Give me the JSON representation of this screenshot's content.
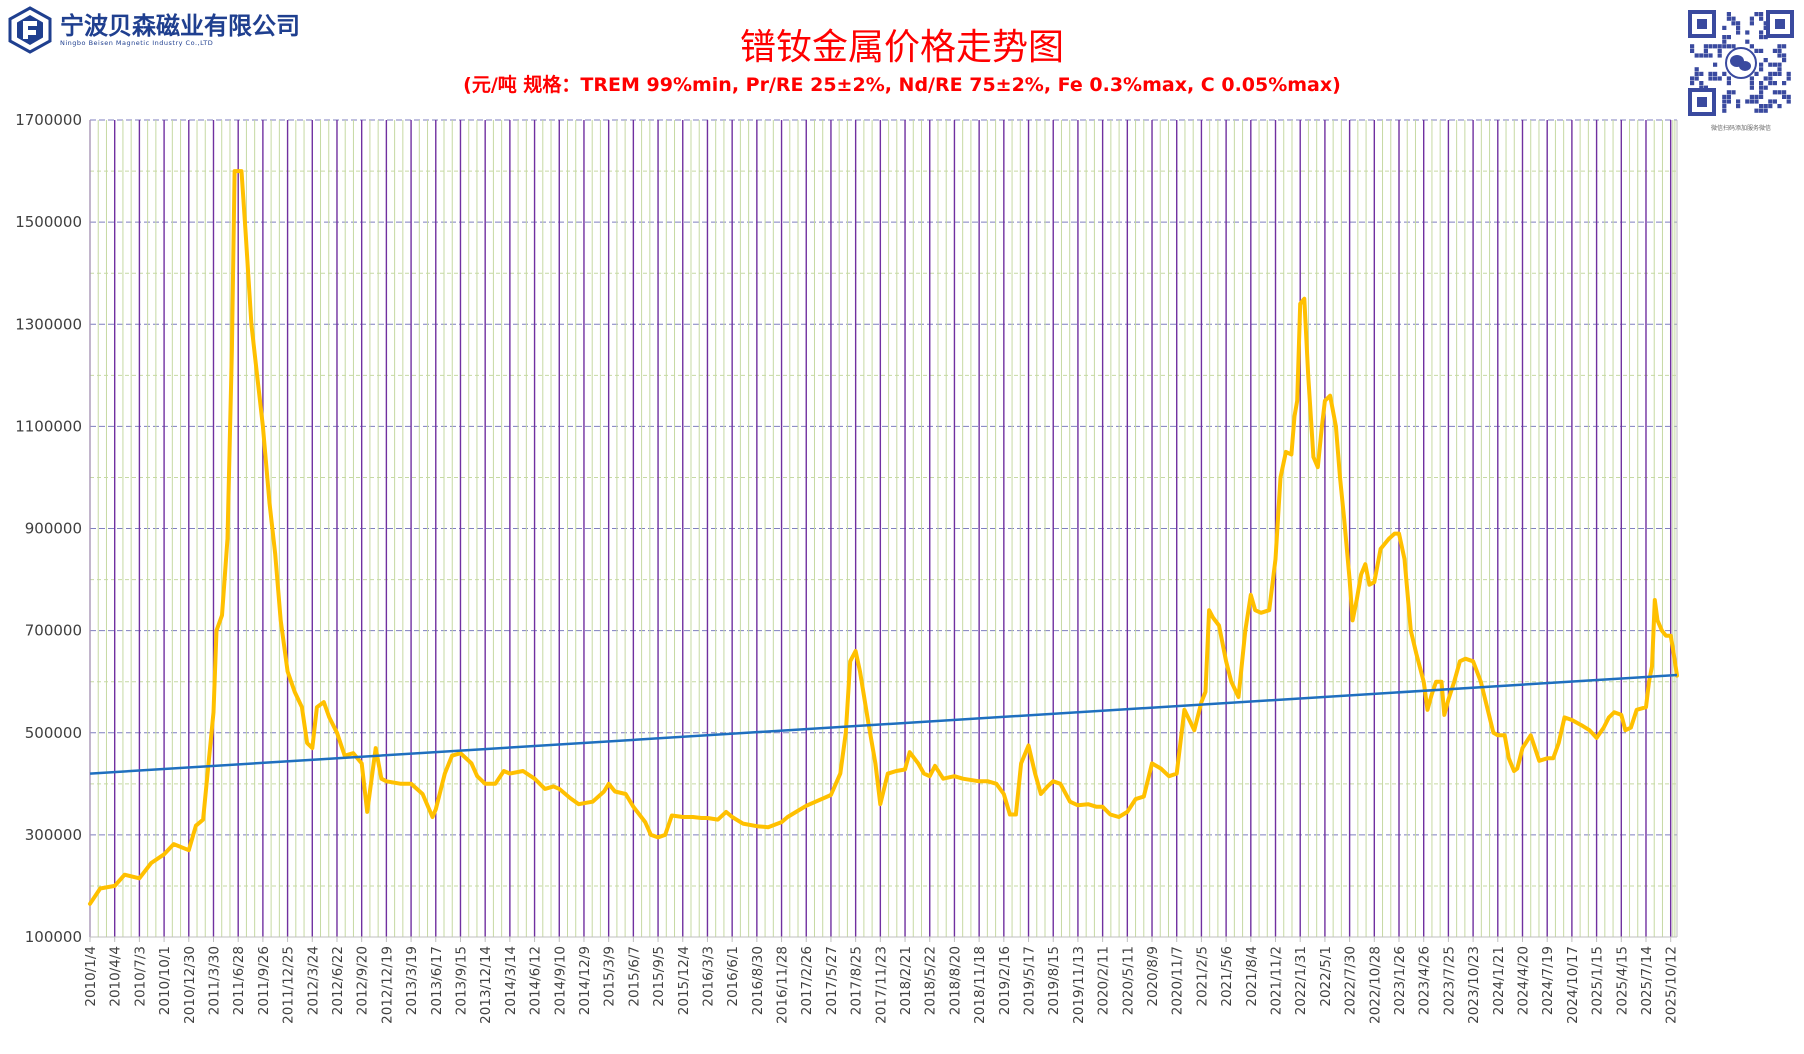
{
  "header": {
    "company_cn": "宁波贝森磁业有限公司",
    "company_en": "Ningbo Beisen Magnetic Industry Co.,LTD",
    "qr_caption": "微信扫码添加服务微信"
  },
  "colors": {
    "title": "#ff0000",
    "series": "#ffc000",
    "trend": "#1f6fbf",
    "vgrid": "#7030a0",
    "hgrid_major": "#7f7fbf",
    "hgrid_minor": "#c6d9a3",
    "brand": "#1f3f8f"
  },
  "chart_data": {
    "type": "line",
    "title": "镨钕金属价格走势图",
    "subtitle": "(元/吨    规格：TREM 99%min, Pr/RE 25±2%, Nd/RE 75±2%, Fe 0.3%max, C 0.05%max)",
    "xlabel": "",
    "ylabel": "",
    "ylim": [
      100000,
      1700000
    ],
    "yticks": [
      100000,
      300000,
      500000,
      700000,
      900000,
      1100000,
      1300000,
      1500000,
      1700000
    ],
    "ytick_labels": [
      "100000",
      "300000",
      "500000",
      "700000",
      "900000",
      "1100000",
      "1300000",
      "1500000",
      "1700000"
    ],
    "minor_grid_step": 100000,
    "vertical_grid": true,
    "legend": "none",
    "xlim": [
      "2010/1/4",
      "2025/11/4"
    ],
    "x_tick_labels": [
      "2010/1/4",
      "2010/4/4",
      "2010/7/3",
      "2010/10/1",
      "2010/12/30",
      "2011/3/30",
      "2011/6/28",
      "2011/9/26",
      "2011/12/25",
      "2012/3/24",
      "2012/6/22",
      "2012/9/20",
      "2012/12/19",
      "2013/3/19",
      "2013/6/17",
      "2013/9/15",
      "2013/12/14",
      "2014/3/14",
      "2014/6/12",
      "2014/9/10",
      "2014/12/9",
      "2015/3/9",
      "2015/6/7",
      "2015/9/5",
      "2015/12/4",
      "2016/3/3",
      "2016/6/1",
      "2016/8/30",
      "2016/11/28",
      "2017/2/26",
      "2017/5/27",
      "2017/8/25",
      "2017/11/23",
      "2018/2/21",
      "2018/5/22",
      "2018/8/20",
      "2018/11/18",
      "2019/2/16",
      "2019/5/17",
      "2019/8/15",
      "2019/11/13",
      "2020/2/11",
      "2020/5/11",
      "2020/8/9",
      "2020/11/7",
      "2021/2/5",
      "2021/5/6",
      "2021/8/4",
      "2021/11/2",
      "2022/1/31",
      "2022/5/1",
      "2022/7/30",
      "2022/10/28",
      "2023/1/26",
      "2023/4/26",
      "2023/7/25",
      "2023/10/23",
      "2024/1/21",
      "2024/4/20",
      "2024/7/19",
      "2024/10/17",
      "2025/1/15",
      "2025/4/15",
      "2025/7/14",
      "2025/10/12"
    ],
    "series": [
      {
        "name": "",
        "color": "#ffc000",
        "points": [
          [
            "2010/1/4",
            165000
          ],
          [
            "2010/2/10",
            195000
          ],
          [
            "2010/4/4",
            200000
          ],
          [
            "2010/5/10",
            222000
          ],
          [
            "2010/7/3",
            215000
          ],
          [
            "2010/8/15",
            245000
          ],
          [
            "2010/10/1",
            262000
          ],
          [
            "2010/11/5",
            282000
          ],
          [
            "2010/12/30",
            270000
          ],
          [
            "2011/1/25",
            318000
          ],
          [
            "2011/2/20",
            330000
          ],
          [
            "2011/3/30",
            540000
          ],
          [
            "2011/4/10",
            700000
          ],
          [
            "2011/4/30",
            730000
          ],
          [
            "2011/5/20",
            880000
          ],
          [
            "2011/6/5",
            1250000
          ],
          [
            "2011/6/15",
            1600000
          ],
          [
            "2011/7/10",
            1600000
          ],
          [
            "2011/7/25",
            1480000
          ],
          [
            "2011/8/15",
            1300000
          ],
          [
            "2011/9/5",
            1200000
          ],
          [
            "2011/9/26",
            1100000
          ],
          [
            "2011/10/20",
            950000
          ],
          [
            "2011/11/10",
            850000
          ],
          [
            "2011/11/30",
            720000
          ],
          [
            "2011/12/25",
            620000
          ],
          [
            "2012/1/20",
            580000
          ],
          [
            "2012/2/15",
            550000
          ],
          [
            "2012/3/5",
            480000
          ],
          [
            "2012/3/24",
            470000
          ],
          [
            "2012/4/10",
            550000
          ],
          [
            "2012/5/5",
            560000
          ],
          [
            "2012/5/25",
            530000
          ],
          [
            "2012/6/22",
            500000
          ],
          [
            "2012/7/20",
            455000
          ],
          [
            "2012/8/20",
            460000
          ],
          [
            "2012/9/20",
            440000
          ],
          [
            "2012/10/10",
            345000
          ],
          [
            "2012/11/10",
            470000
          ],
          [
            "2012/12/1",
            410000
          ],
          [
            "2012/12/19",
            405000
          ],
          [
            "2013/2/10",
            400000
          ],
          [
            "2013/3/19",
            400000
          ],
          [
            "2013/4/30",
            380000
          ],
          [
            "2013/6/5",
            335000
          ],
          [
            "2013/6/17",
            350000
          ],
          [
            "2013/7/20",
            420000
          ],
          [
            "2013/8/15",
            455000
          ],
          [
            "2013/9/15",
            460000
          ],
          [
            "2013/10/25",
            440000
          ],
          [
            "2013/11/15",
            415000
          ],
          [
            "2013/12/14",
            400000
          ],
          [
            "2014/1/20",
            400000
          ],
          [
            "2014/2/20",
            425000
          ],
          [
            "2014/3/14",
            420000
          ],
          [
            "2014/5/1",
            425000
          ],
          [
            "2014/6/12",
            410000
          ],
          [
            "2014/7/20",
            390000
          ],
          [
            "2014/8/20",
            395000
          ],
          [
            "2014/9/10",
            390000
          ],
          [
            "2014/10/20",
            372000
          ],
          [
            "2014/11/20",
            360000
          ],
          [
            "2014/12/9",
            362000
          ],
          [
            "2015/1/10",
            365000
          ],
          [
            "2015/2/20",
            385000
          ],
          [
            "2015/3/9",
            400000
          ],
          [
            "2015/4/1",
            385000
          ],
          [
            "2015/5/10",
            380000
          ],
          [
            "2015/6/7",
            355000
          ],
          [
            "2015/7/20",
            325000
          ],
          [
            "2015/8/10",
            300000
          ],
          [
            "2015/9/5",
            295000
          ],
          [
            "2015/10/1",
            300000
          ],
          [
            "2015/10/25",
            338000
          ],
          [
            "2015/12/4",
            335000
          ],
          [
            "2016/1/10",
            335000
          ],
          [
            "2016/2/10",
            333000
          ],
          [
            "2016/3/3",
            333000
          ],
          [
            "2016/4/10",
            330000
          ],
          [
            "2016/5/10",
            345000
          ],
          [
            "2016/6/1",
            335000
          ],
          [
            "2016/7/10",
            322000
          ],
          [
            "2016/8/30",
            317000
          ],
          [
            "2016/10/10",
            315000
          ],
          [
            "2016/11/28",
            325000
          ],
          [
            "2016/12/20",
            335000
          ],
          [
            "2017/1/20",
            345000
          ],
          [
            "2017/2/26",
            357000
          ],
          [
            "2017/4/1",
            365000
          ],
          [
            "2017/5/27",
            378000
          ],
          [
            "2017/6/30",
            420000
          ],
          [
            "2017/7/20",
            500000
          ],
          [
            "2017/8/5",
            640000
          ],
          [
            "2017/8/25",
            660000
          ],
          [
            "2017/9/10",
            620000
          ],
          [
            "2017/10/10",
            520000
          ],
          [
            "2017/11/5",
            440000
          ],
          [
            "2017/11/23",
            360000
          ],
          [
            "2017/12/20",
            420000
          ],
          [
            "2018/1/20",
            425000
          ],
          [
            "2018/2/21",
            428000
          ],
          [
            "2018/3/10",
            462000
          ],
          [
            "2018/4/10",
            440000
          ],
          [
            "2018/5/1",
            420000
          ],
          [
            "2018/5/22",
            415000
          ],
          [
            "2018/6/10",
            435000
          ],
          [
            "2018/7/10",
            410000
          ],
          [
            "2018/8/20",
            415000
          ],
          [
            "2018/9/20",
            410000
          ],
          [
            "2018/11/18",
            405000
          ],
          [
            "2018/12/20",
            405000
          ],
          [
            "2019/1/20",
            400000
          ],
          [
            "2019/2/16",
            380000
          ],
          [
            "2019/3/10",
            340000
          ],
          [
            "2019/4/1",
            340000
          ],
          [
            "2019/4/20",
            440000
          ],
          [
            "2019/5/17",
            475000
          ],
          [
            "2019/6/10",
            420000
          ],
          [
            "2019/7/1",
            380000
          ],
          [
            "2019/7/25",
            395000
          ],
          [
            "2019/8/15",
            405000
          ],
          [
            "2019/9/10",
            400000
          ],
          [
            "2019/10/15",
            365000
          ],
          [
            "2019/11/13",
            358000
          ],
          [
            "2019/12/20",
            360000
          ],
          [
            "2020/1/20",
            355000
          ],
          [
            "2020/2/11",
            355000
          ],
          [
            "2020/3/10",
            340000
          ],
          [
            "2020/4/10",
            335000
          ],
          [
            "2020/5/11",
            345000
          ],
          [
            "2020/6/10",
            370000
          ],
          [
            "2020/7/10",
            375000
          ],
          [
            "2020/8/9",
            440000
          ],
          [
            "2020/9/10",
            430000
          ],
          [
            "2020/10/10",
            415000
          ],
          [
            "2020/11/7",
            420000
          ],
          [
            "2020/12/5",
            545000
          ],
          [
            "2021/1/10",
            505000
          ],
          [
            "2021/2/5",
            560000
          ],
          [
            "2021/2/20",
            580000
          ],
          [
            "2021/3/5",
            740000
          ],
          [
            "2021/3/20",
            725000
          ],
          [
            "2021/4/10",
            710000
          ],
          [
            "2021/5/6",
            640000
          ],
          [
            "2021/5/25",
            600000
          ],
          [
            "2021/6/20",
            570000
          ],
          [
            "2021/7/15",
            700000
          ],
          [
            "2021/8/4",
            770000
          ],
          [
            "2021/8/20",
            740000
          ],
          [
            "2021/9/10",
            735000
          ],
          [
            "2021/10/10",
            740000
          ],
          [
            "2021/11/2",
            840000
          ],
          [
            "2021/11/20",
            1000000
          ],
          [
            "2021/12/10",
            1050000
          ],
          [
            "2021/12/30",
            1045000
          ],
          [
            "2022/1/10",
            1120000
          ],
          [
            "2022/1/20",
            1150000
          ],
          [
            "2022/1/31",
            1340000
          ],
          [
            "2022/2/15",
            1350000
          ],
          [
            "2022/3/1",
            1200000
          ],
          [
            "2022/3/20",
            1040000
          ],
          [
            "2022/4/5",
            1020000
          ],
          [
            "2022/4/20",
            1100000
          ],
          [
            "2022/5/1",
            1150000
          ],
          [
            "2022/5/20",
            1160000
          ],
          [
            "2022/6/10",
            1100000
          ],
          [
            "2022/6/25",
            1000000
          ],
          [
            "2022/7/10",
            920000
          ],
          [
            "2022/7/30",
            800000
          ],
          [
            "2022/8/10",
            720000
          ],
          [
            "2022/8/25",
            760000
          ],
          [
            "2022/9/10",
            810000
          ],
          [
            "2022/9/25",
            830000
          ],
          [
            "2022/10/10",
            790000
          ],
          [
            "2022/10/28",
            795000
          ],
          [
            "2022/11/20",
            860000
          ],
          [
            "2022/12/20",
            880000
          ],
          [
            "2023/1/10",
            890000
          ],
          [
            "2023/1/26",
            890000
          ],
          [
            "2023/2/15",
            840000
          ],
          [
            "2023/3/10",
            700000
          ],
          [
            "2023/3/30",
            655000
          ],
          [
            "2023/4/26",
            600000
          ],
          [
            "2023/5/10",
            545000
          ],
          [
            "2023/5/25",
            575000
          ],
          [
            "2023/6/10",
            600000
          ],
          [
            "2023/6/30",
            600000
          ],
          [
            "2023/7/10",
            535000
          ],
          [
            "2023/7/25",
            565000
          ],
          [
            "2023/8/15",
            600000
          ],
          [
            "2023/9/5",
            640000
          ],
          [
            "2023/9/25",
            645000
          ],
          [
            "2023/10/23",
            640000
          ],
          [
            "2023/11/20",
            600000
          ],
          [
            "2023/12/20",
            535000
          ],
          [
            "2024/1/5",
            500000
          ],
          [
            "2024/1/21",
            495000
          ],
          [
            "2024/2/15",
            495000
          ],
          [
            "2024/3/1",
            450000
          ],
          [
            "2024/3/20",
            425000
          ],
          [
            "2024/4/1",
            430000
          ],
          [
            "2024/4/20",
            470000
          ],
          [
            "2024/5/20",
            495000
          ],
          [
            "2024/6/20",
            445000
          ],
          [
            "2024/7/19",
            450000
          ],
          [
            "2024/8/10",
            450000
          ],
          [
            "2024/8/30",
            480000
          ],
          [
            "2024/9/20",
            530000
          ],
          [
            "2024/10/17",
            525000
          ],
          [
            "2024/11/20",
            515000
          ],
          [
            "2024/12/20",
            505000
          ],
          [
            "2025/1/15",
            490000
          ],
          [
            "2025/2/10",
            510000
          ],
          [
            "2025/3/1",
            530000
          ],
          [
            "2025/3/20",
            540000
          ],
          [
            "2025/4/15",
            535000
          ],
          [
            "2025/4/30",
            505000
          ],
          [
            "2025/5/20",
            510000
          ],
          [
            "2025/6/10",
            545000
          ],
          [
            "2025/7/14",
            550000
          ],
          [
            "2025/7/25",
            600000
          ],
          [
            "2025/8/5",
            630000
          ],
          [
            "2025/8/15",
            760000
          ],
          [
            "2025/8/25",
            720000
          ],
          [
            "2025/9/10",
            700000
          ],
          [
            "2025/9/25",
            690000
          ],
          [
            "2025/10/12",
            690000
          ],
          [
            "2025/10/20",
            665000
          ],
          [
            "2025/11/4",
            612000
          ]
        ]
      }
    ],
    "trendline": {
      "color": "#1f6fbf",
      "from": [
        "2010/1/4",
        420000
      ],
      "to": [
        "2025/11/4",
        613000
      ]
    }
  }
}
